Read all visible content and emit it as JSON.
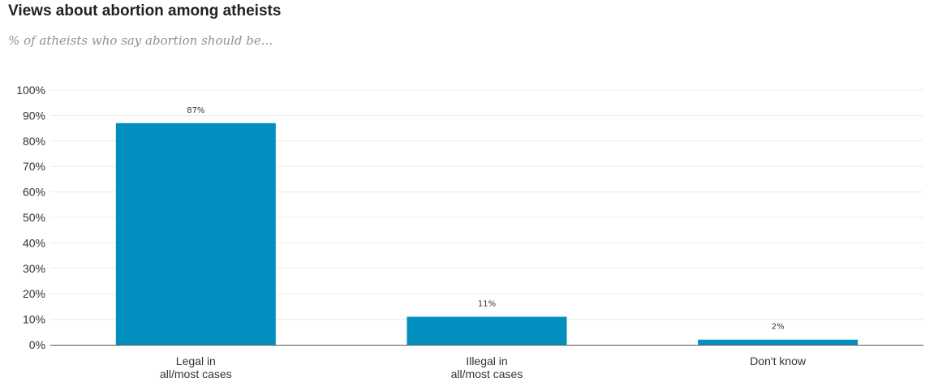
{
  "chart_data": {
    "type": "bar",
    "title": "Views about abortion among atheists",
    "subtitle": "% of atheists who say abortion should be...",
    "categories": [
      [
        "Legal in",
        "all/most cases"
      ],
      [
        "Illegal in",
        "all/most cases"
      ],
      [
        "Don't know"
      ]
    ],
    "values": [
      87,
      11,
      2
    ],
    "data_labels": [
      "87%",
      "11%",
      "2%"
    ],
    "ylim": [
      0,
      100
    ],
    "yticks": [
      0,
      10,
      20,
      30,
      40,
      50,
      60,
      70,
      80,
      90,
      100
    ],
    "ytick_labels": [
      "0%",
      "10%",
      "20%",
      "30%",
      "40%",
      "50%",
      "60%",
      "70%",
      "80%",
      "90%",
      "100%"
    ],
    "grid": true,
    "bar_color": "#008fbf"
  }
}
